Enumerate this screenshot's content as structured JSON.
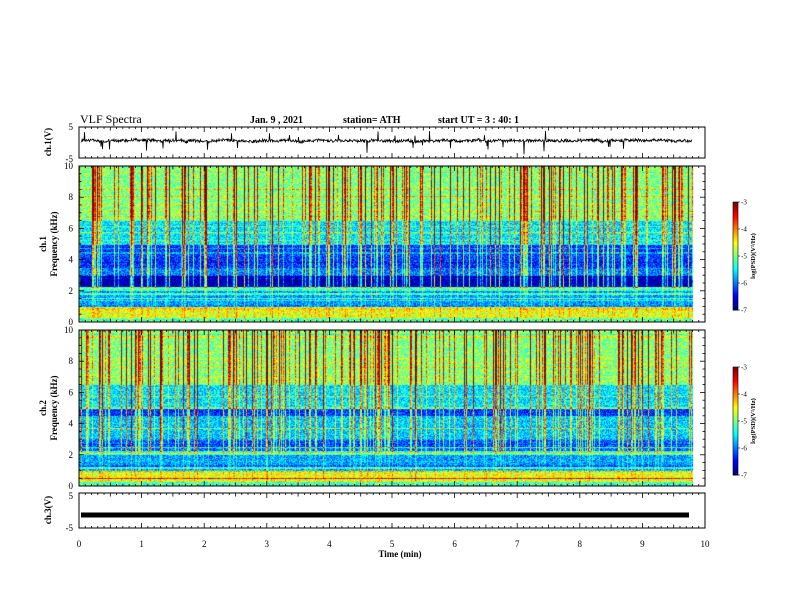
{
  "header": {
    "title": "VLF Spectra",
    "date": "Jan. 9 , 2021",
    "station": "station= ATH",
    "start": "start UT = 3 : 40: 1"
  },
  "colors": {
    "background": "#ffffff",
    "axis": "#000000",
    "waveform": "#000000",
    "colormap": [
      "#000080",
      "#0000ff",
      "#0080ff",
      "#00ffff",
      "#80ff80",
      "#ffff00",
      "#ff8000",
      "#ff0000",
      "#800000"
    ]
  },
  "chart_data": [
    {
      "type": "line",
      "name": "ch1-waveform",
      "ylabel": "ch.1(V)",
      "xlim": [
        0,
        10
      ],
      "ylim": [
        -5,
        5
      ],
      "yticks": [
        "5",
        "-5"
      ],
      "baseline_v": 0.6,
      "data_end_min": 9.8
    },
    {
      "type": "heatmap",
      "name": "ch1-spectrogram",
      "ylabel_top": "ch.1",
      "ylabel": "Frequency (kHz)",
      "xlim": [
        0,
        10
      ],
      "ylim": [
        0,
        10
      ],
      "yticks": [
        "0",
        "2",
        "4",
        "6",
        "8",
        "10"
      ],
      "data_end_min": 9.8,
      "colorbar": {
        "label": "log(PSD)(V²/Hz)",
        "range": [
          -7,
          -3
        ],
        "ticks": [
          "-3",
          "-4",
          "-5",
          "-6",
          "-7"
        ]
      }
    },
    {
      "type": "heatmap",
      "name": "ch2-spectrogram",
      "ylabel_top": "ch.2",
      "ylabel": "Frequency (kHz)",
      "xlim": [
        0,
        10
      ],
      "ylim": [
        0,
        10
      ],
      "yticks": [
        "0",
        "2",
        "4",
        "6",
        "8",
        "10"
      ],
      "data_end_min": 9.8,
      "colorbar": {
        "label": "log(PSD)(V²/Hz)",
        "range": [
          -7,
          -3
        ],
        "ticks": [
          "-3",
          "-4",
          "-5",
          "-6",
          "-7"
        ]
      }
    },
    {
      "type": "line",
      "name": "ch3-waveform",
      "ylabel": "ch.3(V)",
      "xlim": [
        0,
        10
      ],
      "ylim": [
        -5,
        5
      ],
      "yticks": [
        "5",
        "-5"
      ],
      "baseline_v": -1.3,
      "data_end_min": 9.8
    }
  ],
  "xaxis": {
    "label": "Time (min)",
    "ticks": [
      "0",
      "1",
      "2",
      "3",
      "4",
      "5",
      "6",
      "7",
      "8",
      "9",
      "10"
    ]
  }
}
